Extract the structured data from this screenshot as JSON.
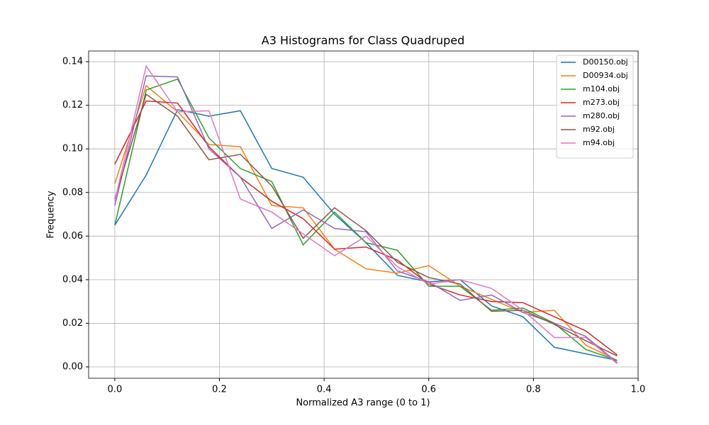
{
  "chart_data": {
    "type": "line",
    "title": "A3 Histograms for Class Quadruped",
    "xlabel": "Normalized A3 range (0 to 1)",
    "ylabel": "Frequency",
    "x": [
      0,
      0.06,
      0.12,
      0.18,
      0.24,
      0.3,
      0.36,
      0.42,
      0.48,
      0.54,
      0.6,
      0.66,
      0.72,
      0.78,
      0.84,
      0.9,
      0.96
    ],
    "series": [
      {
        "name": "D00150.obj",
        "color": "#1f77b4",
        "values": [
          0.065,
          0.088,
          0.118,
          0.115,
          0.1175,
          0.091,
          0.087,
          0.07,
          0.057,
          0.042,
          0.039,
          0.04,
          0.028,
          0.023,
          0.009,
          0.006,
          0.003
        ]
      },
      {
        "name": "D00934.obj",
        "color": "#ff7f0e",
        "values": [
          0.084,
          0.129,
          0.117,
          0.102,
          0.101,
          0.074,
          0.073,
          0.054,
          0.045,
          0.043,
          0.0465,
          0.037,
          0.031,
          0.025,
          0.026,
          0.01,
          0.003
        ]
      },
      {
        "name": "m104.obj",
        "color": "#2ca02c",
        "values": [
          0.065,
          0.127,
          0.132,
          0.105,
          0.091,
          0.085,
          0.056,
          0.071,
          0.057,
          0.0535,
          0.037,
          0.037,
          0.026,
          0.027,
          0.02,
          0.008,
          0.003
        ]
      },
      {
        "name": "m273.obj",
        "color": "#d62728",
        "values": [
          0.093,
          0.122,
          0.121,
          0.101,
          0.087,
          0.076,
          0.068,
          0.054,
          0.055,
          0.049,
          0.038,
          0.033,
          0.03,
          0.0295,
          0.023,
          0.0165,
          0.0055
        ]
      },
      {
        "name": "m280.obj",
        "color": "#9467bd",
        "values": [
          0.074,
          0.1335,
          0.133,
          0.1,
          0.087,
          0.0635,
          0.072,
          0.0635,
          0.062,
          0.044,
          0.039,
          0.0305,
          0.033,
          0.025,
          0.02,
          0.014,
          0.002
        ]
      },
      {
        "name": "m92.obj",
        "color": "#8c564b",
        "values": [
          0.077,
          0.125,
          0.115,
          0.095,
          0.0975,
          0.083,
          0.059,
          0.073,
          0.0625,
          0.048,
          0.041,
          0.038,
          0.0255,
          0.026,
          0.0195,
          0.012,
          0.005
        ]
      },
      {
        "name": "m94.obj",
        "color": "#e377c2",
        "values": [
          0.076,
          0.138,
          0.117,
          0.1175,
          0.077,
          0.071,
          0.061,
          0.051,
          0.06,
          0.046,
          0.038,
          0.04,
          0.036,
          0.026,
          0.0135,
          0.0135,
          0.0015
        ]
      }
    ],
    "xlim": [
      -0.05,
      1.0
    ],
    "xticks": [
      {
        "value": 0,
        "label": "0.0"
      },
      0.2,
      0.4,
      0.6,
      0.8,
      {
        "value": 1,
        "label": "1.0"
      }
    ],
    "ylim": [
      -0.0052,
      0.1449
    ],
    "yticks": [
      {
        "value": 0,
        "label": "0.00"
      },
      {
        "value": 0.02,
        "label": "0.02"
      },
      {
        "value": 0.04,
        "label": "0.04"
      },
      {
        "value": 0.06,
        "label": "0.06"
      },
      {
        "value": 0.08,
        "label": "0.08"
      },
      {
        "value": 0.1,
        "label": "0.10"
      },
      {
        "value": 0.12,
        "label": "0.12"
      },
      {
        "value": 0.14,
        "label": "0.14"
      }
    ],
    "grid": true,
    "legend": "upper right"
  }
}
